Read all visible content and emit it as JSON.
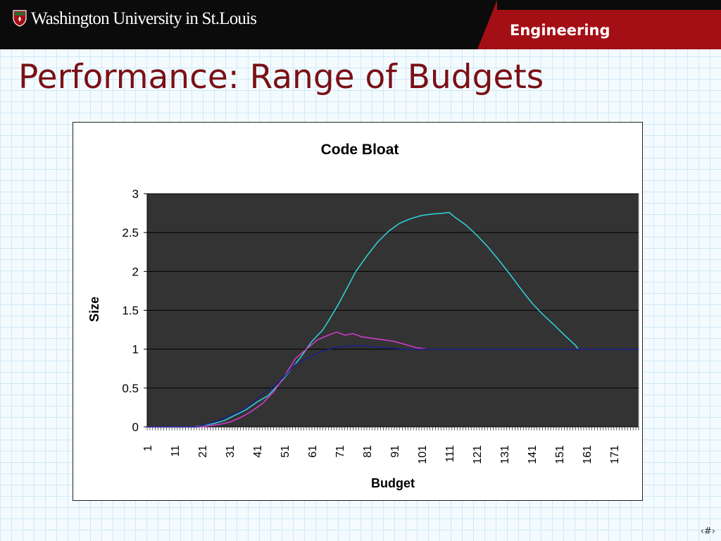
{
  "header": {
    "university": "Washington University in St.Louis",
    "department": "Engineering"
  },
  "slide": {
    "title": "Performance: Range of Budgets",
    "number": "‹#›"
  },
  "colors": {
    "banner": "#0b0b0b",
    "brand_red": "#a40f15",
    "title": "#7a1016",
    "plot_bg": "#333333"
  },
  "chart_data": {
    "type": "line",
    "title": "Code Bloat",
    "xlabel": "Budget",
    "ylabel": "Size",
    "x_start": 1,
    "x_end": 180,
    "x_tick_labels": [
      "1",
      "11",
      "21",
      "31",
      "41",
      "51",
      "61",
      "71",
      "81",
      "91",
      "101",
      "111",
      "121",
      "131",
      "141",
      "151",
      "161",
      "171"
    ],
    "y_ticks": [
      0,
      0.5,
      1,
      1.5,
      2,
      2.5,
      3
    ],
    "ylim": [
      0,
      3
    ],
    "grid": "horizontal",
    "legend": "none",
    "series": [
      {
        "color": "#2fd6de",
        "points": [
          [
            1,
            0
          ],
          [
            18,
            0
          ],
          [
            21,
            0.02
          ],
          [
            25,
            0.04
          ],
          [
            29,
            0.08
          ],
          [
            33,
            0.15
          ],
          [
            37,
            0.22
          ],
          [
            41,
            0.32
          ],
          [
            45,
            0.4
          ],
          [
            49,
            0.55
          ],
          [
            53,
            0.72
          ],
          [
            57,
            0.9
          ],
          [
            61,
            1.1
          ],
          [
            65,
            1.25
          ],
          [
            68,
            1.42
          ],
          [
            71,
            1.6
          ],
          [
            74,
            1.8
          ],
          [
            77,
            2.0
          ],
          [
            81,
            2.2
          ],
          [
            85,
            2.38
          ],
          [
            89,
            2.52
          ],
          [
            93,
            2.62
          ],
          [
            97,
            2.68
          ],
          [
            101,
            2.72
          ],
          [
            105,
            2.74
          ],
          [
            109,
            2.75
          ],
          [
            111,
            2.76
          ],
          [
            113,
            2.7
          ],
          [
            117,
            2.6
          ],
          [
            121,
            2.47
          ],
          [
            125,
            2.32
          ],
          [
            129,
            2.15
          ],
          [
            133,
            1.97
          ],
          [
            137,
            1.78
          ],
          [
            141,
            1.6
          ],
          [
            145,
            1.45
          ],
          [
            149,
            1.32
          ],
          [
            153,
            1.18
          ],
          [
            157,
            1.05
          ],
          [
            158,
            1.0
          ],
          [
            180,
            1.0
          ]
        ]
      },
      {
        "color": "#d93ad0",
        "points": [
          [
            1,
            0
          ],
          [
            21,
            0
          ],
          [
            27,
            0.03
          ],
          [
            31,
            0.06
          ],
          [
            35,
            0.12
          ],
          [
            39,
            0.2
          ],
          [
            43,
            0.3
          ],
          [
            47,
            0.45
          ],
          [
            51,
            0.65
          ],
          [
            55,
            0.88
          ],
          [
            59,
            1.0
          ],
          [
            63,
            1.12
          ],
          [
            67,
            1.18
          ],
          [
            70,
            1.22
          ],
          [
            73,
            1.18
          ],
          [
            76,
            1.2
          ],
          [
            79,
            1.16
          ],
          [
            83,
            1.14
          ],
          [
            87,
            1.12
          ],
          [
            91,
            1.1
          ],
          [
            95,
            1.06
          ],
          [
            99,
            1.02
          ],
          [
            103,
            1.0
          ],
          [
            180,
            1.0
          ]
        ]
      },
      {
        "color": "#1a1f8f",
        "points": [
          [
            1,
            0
          ],
          [
            19,
            0
          ],
          [
            23,
            0.04
          ],
          [
            27,
            0.08
          ],
          [
            31,
            0.14
          ],
          [
            35,
            0.2
          ],
          [
            39,
            0.3
          ],
          [
            43,
            0.42
          ],
          [
            47,
            0.52
          ],
          [
            51,
            0.65
          ],
          [
            55,
            0.8
          ],
          [
            59,
            0.88
          ],
          [
            63,
            0.95
          ],
          [
            67,
            1.0
          ],
          [
            71,
            1.03
          ],
          [
            75,
            1.04
          ],
          [
            79,
            1.05
          ],
          [
            83,
            1.03
          ],
          [
            87,
            1.02
          ],
          [
            91,
            1.01
          ],
          [
            95,
            1.0
          ],
          [
            180,
            1.0
          ]
        ]
      }
    ]
  }
}
